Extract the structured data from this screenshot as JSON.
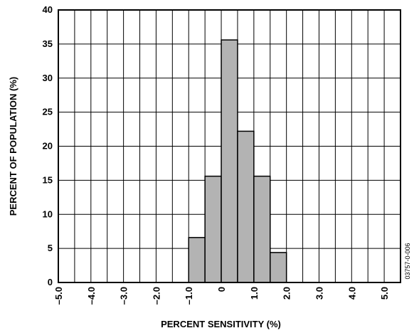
{
  "chart_data": {
    "type": "bar",
    "title": "",
    "xlabel": "PERCENT SENSITIVITY (%)",
    "ylabel": "PERCENT OF POPULATION (%)",
    "xlim": [
      -5.0,
      5.5
    ],
    "ylim": [
      0,
      40
    ],
    "x_ticks": [
      -5.0,
      -4.0,
      -3.0,
      -2.0,
      -1.0,
      0,
      1.0,
      2.0,
      3.0,
      4.0,
      5.0
    ],
    "x_tick_labels": [
      "–5.0",
      "–4.0",
      "–3.0",
      "–2.0",
      "–1.0",
      "0",
      "1.0",
      "2.0",
      "3.0",
      "4.0",
      "5.0"
    ],
    "y_ticks": [
      0,
      5,
      10,
      15,
      20,
      25,
      30,
      35,
      40
    ],
    "y_tick_labels": [
      "0",
      "5",
      "10",
      "15",
      "20",
      "25",
      "30",
      "35",
      "40"
    ],
    "grid": true,
    "grid_step_x": 0.5,
    "grid_step_y": 5,
    "bar_color": "#b3b3b3",
    "bars": [
      {
        "bin_start": -1.0,
        "bin_end": -0.5,
        "value": 6.6
      },
      {
        "bin_start": -0.5,
        "bin_end": 0.0,
        "value": 15.6
      },
      {
        "bin_start": 0.0,
        "bin_end": 0.5,
        "value": 35.6
      },
      {
        "bin_start": 0.5,
        "bin_end": 1.0,
        "value": 22.2
      },
      {
        "bin_start": 1.0,
        "bin_end": 1.5,
        "value": 15.6
      },
      {
        "bin_start": 1.5,
        "bin_end": 2.0,
        "value": 4.4
      }
    ],
    "side_label": "03757-0-006"
  }
}
